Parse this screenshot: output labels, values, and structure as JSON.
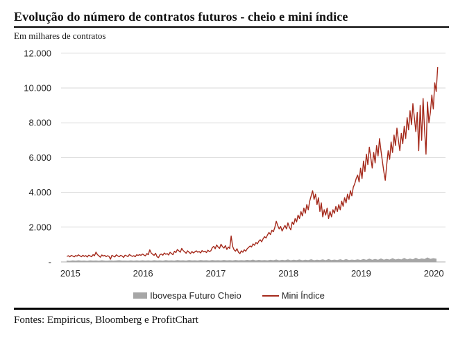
{
  "header": {
    "title": "Evolução do número de contratos futuros - cheio e mini índice",
    "unit_label": "Em milhares de contratos"
  },
  "footer": {
    "source": "Fontes: Empiricus, Bloomberg e ProfitChart"
  },
  "legend": {
    "items": [
      {
        "label": "Ibovespa Futuro Cheio",
        "color": "#a6a6a6",
        "swatch": "box"
      },
      {
        "label": "Mini Índice",
        "color": "#a4291b",
        "swatch": "line"
      }
    ]
  },
  "colors": {
    "mini_indice": "#a4291b",
    "ibovespa_cheio": "#a6a6a6",
    "gridline": "#d9d9d9",
    "axis_line": "#bfbfbf",
    "tick_text": "#262626"
  },
  "chart_data": {
    "type": "line",
    "title": "Evolução do número de contratos futuros - cheio e mini índice",
    "ylabel": "Em milhares de contratos",
    "xlabel": "",
    "grid": "horizontal",
    "legend_position": "bottom",
    "xlim": [
      2014.92,
      2020.17
    ],
    "ylim": [
      0,
      12000
    ],
    "y_ticks": [
      {
        "value": 12000,
        "label": "12.000"
      },
      {
        "value": 10000,
        "label": "10.000"
      },
      {
        "value": 8000,
        "label": "8.000"
      },
      {
        "value": 6000,
        "label": "6.000"
      },
      {
        "value": 4000,
        "label": "4.000"
      },
      {
        "value": 2000,
        "label": "2.000"
      },
      {
        "value": 0,
        "label": "-"
      }
    ],
    "x_ticks": [
      {
        "value": 2015,
        "label": "2015"
      },
      {
        "value": 2016,
        "label": "2016"
      },
      {
        "value": 2017,
        "label": "2017"
      },
      {
        "value": 2018,
        "label": "2018"
      },
      {
        "value": 2019,
        "label": "2019"
      },
      {
        "value": 2020,
        "label": "2020"
      }
    ],
    "series": [
      {
        "name": "Ibovespa Futuro Cheio",
        "color": "#a6a6a6",
        "style": "filled",
        "x_start": 2015.0,
        "x_step": 0.04,
        "values": [
          60,
          42,
          72,
          50,
          80,
          55,
          65,
          45,
          75,
          58,
          68,
          48,
          78,
          60,
          50,
          72,
          55,
          66,
          82,
          58,
          64,
          50,
          76,
          56,
          70,
          54,
          80,
          58,
          72,
          55,
          85,
          62,
          74,
          56,
          88,
          64,
          76,
          58,
          90,
          66,
          78,
          60,
          92,
          68,
          80,
          62,
          94,
          70,
          82,
          64,
          96,
          72,
          84,
          66,
          98,
          74,
          86,
          68,
          100,
          76,
          88,
          70,
          102,
          78,
          118,
          72,
          104,
          80,
          92,
          74,
          106,
          82,
          124,
          76,
          108,
          84,
          126,
          78,
          110,
          86,
          128,
          80,
          112,
          88,
          140,
          82,
          114,
          90,
          132,
          84,
          146,
          92,
          118,
          94,
          134,
          86,
          148,
          96,
          120,
          98,
          136,
          100,
          150,
          104,
          170,
          108,
          154,
          112,
          182,
          116,
          158,
          120,
          196,
          124,
          162,
          128,
          210,
          132,
          176,
          136,
          220,
          140,
          184,
          150,
          240,
          160,
          200,
          170
        ]
      },
      {
        "name": "Mini Índice",
        "color": "#a4291b",
        "style": "line",
        "x_start": 2015.0,
        "x_step": 0.02,
        "values": [
          320,
          355,
          295,
          375,
          340,
          290,
          368,
          330,
          405,
          350,
          298,
          378,
          318,
          362,
          282,
          388,
          342,
          300,
          418,
          360,
          560,
          420,
          350,
          270,
          398,
          338,
          378,
          300,
          358,
          318,
          160,
          380,
          330,
          288,
          408,
          348,
          298,
          378,
          338,
          258,
          388,
          348,
          308,
          428,
          368,
          318,
          358,
          298,
          415,
          375,
          418,
          378,
          455,
          398,
          348,
          478,
          418,
          695,
          515,
          438,
          378,
          498,
          298,
          248,
          418,
          455,
          388,
          515,
          438,
          478,
          398,
          555,
          478,
          418,
          615,
          538,
          715,
          638,
          558,
          775,
          655,
          578,
          498,
          638,
          558,
          478,
          598,
          518,
          578,
          638,
          558,
          598,
          518,
          655,
          578,
          618,
          538,
          675,
          598,
          638,
          818,
          898,
          758,
          975,
          858,
          778,
          1015,
          878,
          798,
          938,
          718,
          858,
          778,
          1490,
          898,
          698,
          618,
          758,
          558,
          478,
          638,
          558,
          698,
          618,
          758,
          838,
          918,
          858,
          1035,
          958,
          1115,
          1038,
          1195,
          1275,
          1155,
          1335,
          1455,
          1375,
          1555,
          1695,
          1575,
          1815,
          1735,
          1975,
          2340,
          2095,
          1895,
          2045,
          1775,
          1945,
          2095,
          1895,
          2245,
          1995,
          1845,
          2295,
          2145,
          2495,
          2295,
          2695,
          2495,
          2895,
          2645,
          3095,
          2795,
          3295,
          2995,
          3495,
          3795,
          4095,
          3595,
          3895,
          3295,
          3695,
          2895,
          3395,
          2595,
          2995,
          2695,
          3095,
          2495,
          2895,
          2595,
          2995,
          2795,
          3195,
          2895,
          3295,
          2995,
          3495,
          3195,
          3695,
          3395,
          3895,
          3595,
          4095,
          3795,
          4295,
          4495,
          4795,
          4995,
          4595,
          5395,
          4795,
          5795,
          5195,
          6195,
          5595,
          6595,
          5995,
          5395,
          6295,
          5695,
          6695,
          6095,
          7095,
          6395,
          5795,
          5195,
          4695,
          5595,
          6395,
          5895,
          6895,
          6295,
          7295,
          6695,
          7695,
          6995,
          6395,
          7395,
          6795,
          7795,
          7095,
          8295,
          7595,
          8695,
          7895,
          9095,
          8295,
          7495,
          8595,
          6395,
          8995,
          6995,
          9395,
          7595,
          6195,
          9195,
          7995,
          8595,
          9595,
          8795,
          10295,
          9795,
          11195
        ]
      }
    ]
  }
}
